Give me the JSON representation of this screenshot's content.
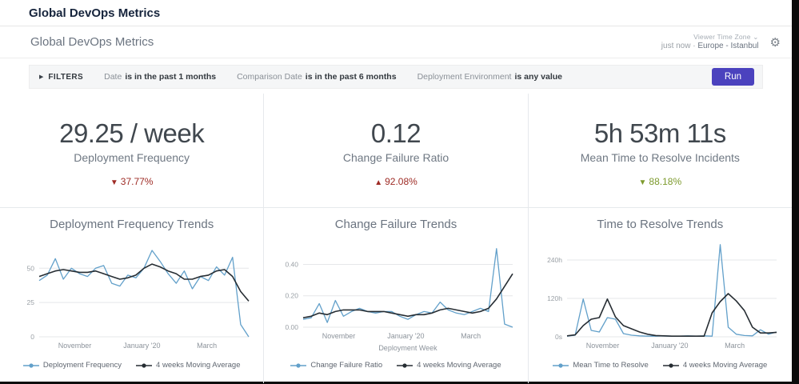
{
  "window": {
    "title": "Global DevOps Metrics"
  },
  "header": {
    "dashboard_title": "Global DevOps Metrics",
    "viewer_time_zone_label": "Viewer Time Zone",
    "last_run": "just now",
    "separator": "·",
    "timezone": "Europe - Istanbul"
  },
  "icons": {
    "gear": "⚙",
    "chevron_down": "⌄",
    "expander": "▶"
  },
  "filters": {
    "label": "FILTERS",
    "items": [
      {
        "field": "Date",
        "condition": "is in the past 1 months"
      },
      {
        "field": "Comparison Date",
        "condition": "is in the past 6 months"
      },
      {
        "field": "Deployment Environment",
        "condition": "is any value"
      }
    ],
    "run_label": "Run"
  },
  "kpis": [
    {
      "value": "29.25 / week",
      "label": "Deployment Frequency",
      "arrow": "▼",
      "change": "37.77%",
      "color": "#9e2b25"
    },
    {
      "value": "0.12",
      "label": "Change Failure Ratio",
      "arrow": "▲",
      "change": "92.08%",
      "color": "#9e2b25"
    },
    {
      "value": "5h 53m 11s",
      "label": "Mean Time to Resolve Incidents",
      "arrow": "▼",
      "change": "88.18%",
      "color": "#7d9a2d"
    }
  ],
  "chart_data": [
    {
      "type": "line",
      "title": "Deployment Frequency Trends",
      "xlabel": "",
      "ylim": [
        0,
        70
      ],
      "y_ticks": [
        {
          "v": 0,
          "label": "0"
        },
        {
          "v": 25,
          "label": "25"
        },
        {
          "v": 50,
          "label": "50"
        }
      ],
      "x_ticks": [
        {
          "pos": 0.17,
          "label": "November"
        },
        {
          "pos": 0.49,
          "label": "January '20"
        },
        {
          "pos": 0.8,
          "label": "March"
        }
      ],
      "series": [
        {
          "name": "Deployment Frequency",
          "color": "#62a0ca",
          "values": [
            41,
            45,
            57,
            42,
            50,
            46,
            44,
            50,
            52,
            39,
            37,
            45,
            43,
            50,
            63,
            55,
            46,
            39,
            48,
            35,
            44,
            41,
            51,
            45,
            58,
            9,
            0
          ]
        },
        {
          "name": "4 weeks Moving Average",
          "color": "#262d33",
          "values": [
            44,
            46,
            48,
            49,
            48,
            47,
            47,
            48,
            46,
            44,
            42,
            43,
            45,
            50,
            53,
            51,
            48,
            46,
            42,
            42,
            44,
            45,
            48,
            49,
            44,
            33,
            26
          ]
        }
      ]
    },
    {
      "type": "line",
      "title": "Change Failure Trends",
      "xlabel": "Deployment Week",
      "ylim": [
        0,
        0.55
      ],
      "y_ticks": [
        {
          "v": 0,
          "label": "0.00"
        },
        {
          "v": 0.2,
          "label": "0.20"
        },
        {
          "v": 0.4,
          "label": "0.40"
        }
      ],
      "x_ticks": [
        {
          "pos": 0.17,
          "label": "November"
        },
        {
          "pos": 0.49,
          "label": "January '20"
        },
        {
          "pos": 0.8,
          "label": "March"
        }
      ],
      "series": [
        {
          "name": "Change Failure Ratio",
          "color": "#62a0ca",
          "values": [
            0.05,
            0.06,
            0.15,
            0.03,
            0.17,
            0.07,
            0.1,
            0.12,
            0.1,
            0.09,
            0.1,
            0.1,
            0.07,
            0.05,
            0.08,
            0.1,
            0.09,
            0.16,
            0.11,
            0.09,
            0.08,
            0.1,
            0.12,
            0.1,
            0.5,
            0.02,
            0.0
          ]
        },
        {
          "name": "4 weeks Moving Average",
          "color": "#262d33",
          "values": [
            0.06,
            0.07,
            0.09,
            0.08,
            0.1,
            0.11,
            0.11,
            0.11,
            0.1,
            0.1,
            0.1,
            0.09,
            0.08,
            0.07,
            0.08,
            0.08,
            0.09,
            0.11,
            0.12,
            0.11,
            0.1,
            0.09,
            0.1,
            0.12,
            0.18,
            0.26,
            0.34
          ]
        }
      ]
    },
    {
      "type": "line",
      "title": "Time to Resolve Trends",
      "xlabel": "",
      "ylim": [
        0,
        300
      ],
      "y_ticks": [
        {
          "v": 0,
          "label": "0s"
        },
        {
          "v": 120,
          "label": "120h"
        },
        {
          "v": 240,
          "label": "240h"
        }
      ],
      "x_ticks": [
        {
          "pos": 0.17,
          "label": "November"
        },
        {
          "pos": 0.49,
          "label": "January '20"
        },
        {
          "pos": 0.8,
          "label": "March"
        }
      ],
      "series": [
        {
          "name": "Mean Time to Resolve",
          "color": "#62a0ca",
          "values": [
            2,
            5,
            118,
            20,
            15,
            60,
            55,
            10,
            5,
            3,
            2,
            2,
            3,
            2,
            2,
            3,
            2,
            3,
            2,
            288,
            30,
            8,
            4,
            3,
            22,
            8,
            15
          ]
        },
        {
          "name": "4 weeks Moving Average",
          "color": "#262d33",
          "values": [
            3,
            6,
            35,
            55,
            60,
            118,
            62,
            35,
            25,
            15,
            8,
            4,
            3,
            2,
            2,
            2,
            2,
            2,
            75,
            110,
            135,
            112,
            82,
            30,
            12,
            12,
            14
          ]
        }
      ]
    }
  ]
}
